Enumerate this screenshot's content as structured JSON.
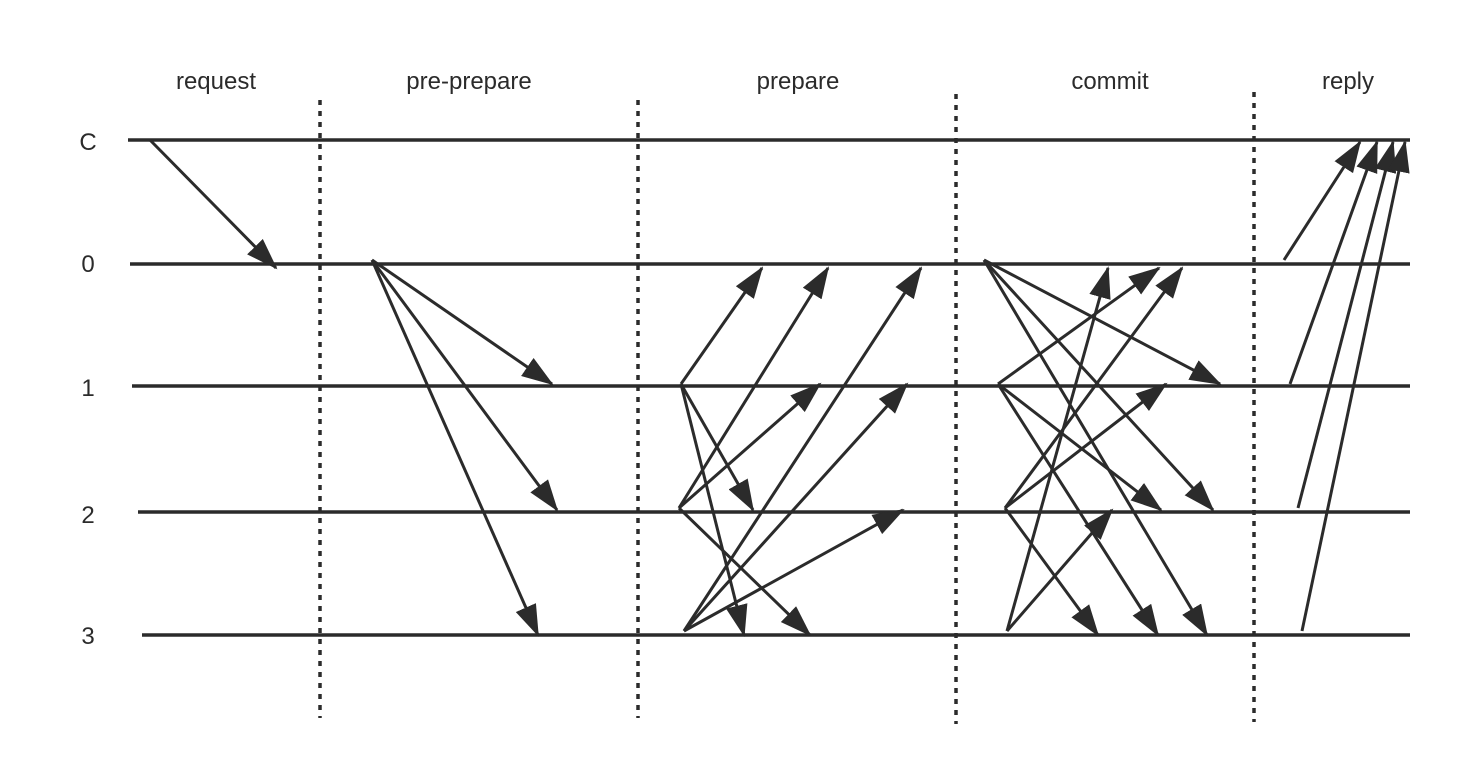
{
  "diagram": {
    "type": "message-sequence",
    "phases": [
      "request",
      "pre-prepare",
      "prepare",
      "commit",
      "reply"
    ],
    "nodes": [
      "C",
      "0",
      "1",
      "2",
      "3"
    ],
    "messages": {
      "request": [
        {
          "from": "C",
          "to": "0"
        }
      ],
      "pre-prepare": [
        {
          "from": "0",
          "to": "1"
        },
        {
          "from": "0",
          "to": "2"
        },
        {
          "from": "0",
          "to": "3"
        }
      ],
      "prepare": [
        {
          "from": "1",
          "to": "0"
        },
        {
          "from": "1",
          "to": "2"
        },
        {
          "from": "1",
          "to": "3"
        },
        {
          "from": "2",
          "to": "0"
        },
        {
          "from": "2",
          "to": "1"
        },
        {
          "from": "2",
          "to": "3"
        },
        {
          "from": "3",
          "to": "0"
        },
        {
          "from": "3",
          "to": "1"
        },
        {
          "from": "3",
          "to": "2"
        }
      ],
      "commit": [
        {
          "from": "0",
          "to": "1"
        },
        {
          "from": "0",
          "to": "2"
        },
        {
          "from": "0",
          "to": "3"
        },
        {
          "from": "1",
          "to": "0"
        },
        {
          "from": "1",
          "to": "2"
        },
        {
          "from": "1",
          "to": "3"
        },
        {
          "from": "2",
          "to": "0"
        },
        {
          "from": "2",
          "to": "1"
        },
        {
          "from": "2",
          "to": "3"
        },
        {
          "from": "3",
          "to": "0"
        },
        {
          "from": "3",
          "to": "2"
        }
      ],
      "reply": [
        {
          "from": "0",
          "to": "C"
        },
        {
          "from": "1",
          "to": "C"
        },
        {
          "from": "2",
          "to": "C"
        },
        {
          "from": "3",
          "to": "C"
        }
      ]
    }
  }
}
